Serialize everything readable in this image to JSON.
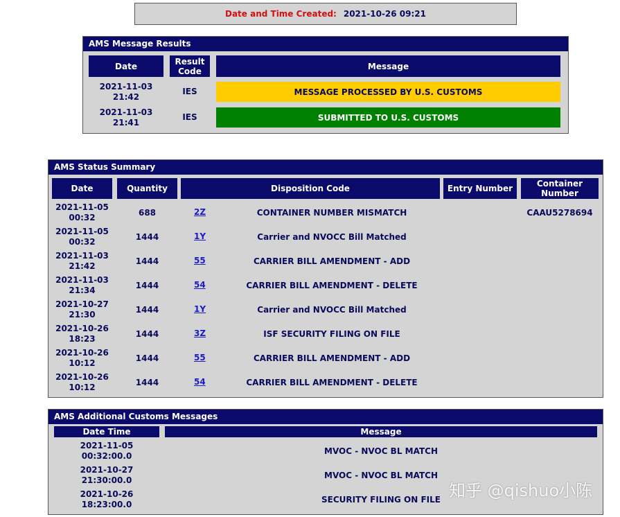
{
  "created": {
    "label": "Date and Time Created:",
    "value": "2021-10-26 09:21"
  },
  "results": {
    "title": "AMS Message Results",
    "headers": [
      "Date",
      "Result Code",
      "Message"
    ],
    "rows": [
      {
        "date": "2021-11-03",
        "time": "21:42",
        "code": "IES",
        "message": "MESSAGE PROCESSED BY U.S. CUSTOMS",
        "color": "#ffcc00",
        "text_color": "#0a0a5a"
      },
      {
        "date": "2021-11-03",
        "time": "21:41",
        "code": "IES",
        "message": "SUBMITTED TO U.S. CUSTOMS",
        "color": "#008000",
        "text_color": "#ffffff"
      }
    ]
  },
  "summary": {
    "title": "AMS Status Summary",
    "headers": [
      "Date",
      "Quantity",
      "Disposition Code",
      "Entry Number",
      "Container Number"
    ],
    "rows": [
      {
        "date": "2021-11-05",
        "time": "00:32",
        "qty": "688",
        "code": "2Z",
        "desc": "CONTAINER NUMBER MISMATCH",
        "entry": "",
        "container": "CAAU5278694"
      },
      {
        "date": "2021-11-05",
        "time": "00:32",
        "qty": "1444",
        "code": "1Y",
        "desc": "Carrier and NVOCC Bill Matched",
        "entry": "",
        "container": ""
      },
      {
        "date": "2021-11-03",
        "time": "21:42",
        "qty": "1444",
        "code": "55",
        "desc": "CARRIER BILL AMENDMENT - ADD",
        "entry": "",
        "container": ""
      },
      {
        "date": "2021-11-03",
        "time": "21:34",
        "qty": "1444",
        "code": "54",
        "desc": "CARRIER BILL AMENDMENT - DELETE",
        "entry": "",
        "container": ""
      },
      {
        "date": "2021-10-27",
        "time": "21:30",
        "qty": "1444",
        "code": "1Y",
        "desc": "Carrier and NVOCC Bill Matched",
        "entry": "",
        "container": ""
      },
      {
        "date": "2021-10-26",
        "time": "18:23",
        "qty": "1444",
        "code": "3Z",
        "desc": "ISF SECURITY FILING ON FILE",
        "entry": "",
        "container": ""
      },
      {
        "date": "2021-10-26",
        "time": "10:12",
        "qty": "1444",
        "code": "55",
        "desc": "CARRIER BILL AMENDMENT - ADD",
        "entry": "",
        "container": ""
      },
      {
        "date": "2021-10-26",
        "time": "10:12",
        "qty": "1444",
        "code": "54",
        "desc": "CARRIER BILL AMENDMENT - DELETE",
        "entry": "",
        "container": ""
      }
    ]
  },
  "additional": {
    "title": "AMS Additional Customs Messages",
    "headers": [
      "Date Time",
      "Message"
    ],
    "rows": [
      {
        "date": "2021-11-05",
        "time": "00:32:00.0",
        "message": "MVOC - NVOC BL MATCH"
      },
      {
        "date": "2021-10-27",
        "time": "21:30:00.0",
        "message": "MVOC - NVOC BL MATCH"
      },
      {
        "date": "2021-10-26",
        "time": "18:23:00.0",
        "message": "SECURITY FILING ON FILE"
      }
    ]
  },
  "watermark": "知乎 @qishuo小陈"
}
